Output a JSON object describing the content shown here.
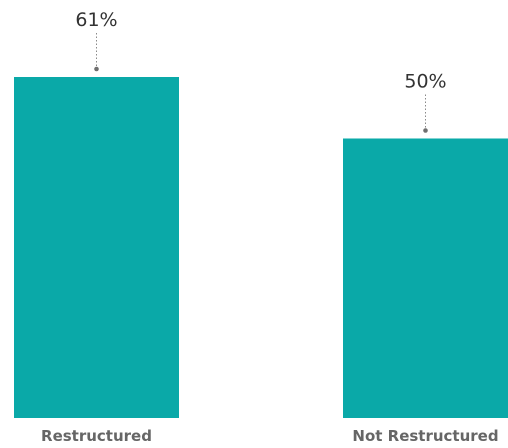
{
  "chart_data": {
    "type": "bar",
    "categories": [
      "Restructured",
      "Not Restructured"
    ],
    "values": [
      61,
      50
    ],
    "data_labels": [
      "61%",
      "50%"
    ],
    "title": "",
    "xlabel": "",
    "ylabel": "",
    "ylim": [
      0,
      61
    ],
    "grid": false,
    "legend": "none",
    "bar_color": "#0aa9a8"
  }
}
